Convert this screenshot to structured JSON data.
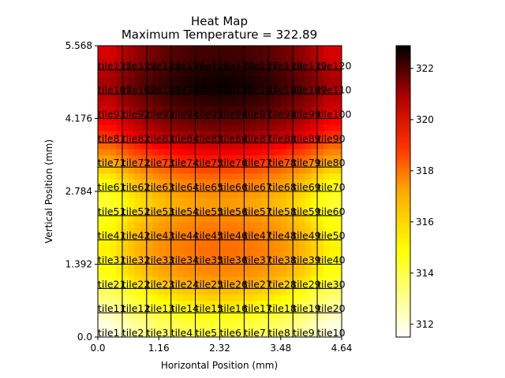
{
  "chart_data": {
    "type": "heatmap",
    "title": "Heat Map",
    "subtitle": "Maximum Temperature = 322.89",
    "xlabel": "Horizontal Position (mm)",
    "ylabel": "Vertical Position (mm)",
    "xlim": [
      0.0,
      4.64
    ],
    "ylim": [
      0.0,
      5.568
    ],
    "x_ticks": [
      "0.0",
      "1.16",
      "2.32",
      "3.48",
      "4.64"
    ],
    "y_ticks": [
      "0.0",
      "1.392",
      "2.784",
      "4.176",
      "5.568"
    ],
    "grid": {
      "cols": 10,
      "rows": 12
    },
    "colorbar": {
      "min": 311.5,
      "max": 322.89,
      "ticks": [
        "312",
        "314",
        "316",
        "318",
        "320",
        "322"
      ],
      "colormap": "hot_r"
    },
    "tile_labels_by_row": [
      [
        "tile1",
        "tile2",
        "tile3",
        "tile4",
        "tile5",
        "tile6",
        "tile7",
        "tile8",
        "tile9",
        "tile10"
      ],
      [
        "tile11",
        "tile12",
        "tile13",
        "tile14",
        "tile15",
        "tile16",
        "tile17",
        "tile18",
        "tile19",
        "tile20"
      ],
      [
        "tile21",
        "tile22",
        "tile23",
        "tile24",
        "tile25",
        "tile26",
        "tile27",
        "tile28",
        "tile29",
        "tile30"
      ],
      [
        "tile31",
        "tile32",
        "tile33",
        "tile34",
        "tile35",
        "tile36",
        "tile37",
        "tile38",
        "tile39",
        "tile40"
      ],
      [
        "tile41",
        "tile42",
        "tile43",
        "tile44",
        "tile45",
        "tile46",
        "tile47",
        "tile48",
        "tile49",
        "tile50"
      ],
      [
        "tile51",
        "tile52",
        "tile53",
        "tile54",
        "tile55",
        "tile56",
        "tile57",
        "tile58",
        "tile59",
        "tile60"
      ],
      [
        "tile61",
        "tile62",
        "tile63",
        "tile64",
        "tile65",
        "tile66",
        "tile67",
        "tile68",
        "tile69",
        "tile70"
      ],
      [
        "tile71",
        "tile72",
        "tile73",
        "tile74",
        "tile75",
        "tile76",
        "tile77",
        "tile78",
        "tile79",
        "tile80"
      ],
      [
        "tile81",
        "tile82",
        "tile83",
        "tile84",
        "tile85",
        "tile86",
        "tile87",
        "tile88",
        "tile89",
        "tile90"
      ],
      [
        "tile91",
        "tile92",
        "tile93",
        "tile94",
        "tile95",
        "tile96",
        "tile97",
        "tile98",
        "tile99",
        "tile100"
      ],
      [
        "tile101",
        "tile102",
        "tile103",
        "tile104",
        "tile105",
        "tile106",
        "tile107",
        "tile108",
        "tile109",
        "tile110"
      ],
      [
        "tile111",
        "tile112",
        "tile113",
        "tile114",
        "tile115",
        "tile116",
        "tile117",
        "tile118",
        "tile119",
        "tile120"
      ]
    ],
    "row_temperatures": [
      [
        311.8,
        312.6,
        313.2,
        313.6,
        313.8,
        313.8,
        313.6,
        313.2,
        312.6,
        311.8
      ],
      [
        312.9,
        313.7,
        314.4,
        314.8,
        315.0,
        315.0,
        314.8,
        314.4,
        313.7,
        312.9
      ],
      [
        314.1,
        315.1,
        315.7,
        316.1,
        316.3,
        316.3,
        316.1,
        315.7,
        315.1,
        314.1
      ],
      [
        314.6,
        315.6,
        316.3,
        316.7,
        316.9,
        316.9,
        316.7,
        316.3,
        315.6,
        314.6
      ],
      [
        314.4,
        315.4,
        316.1,
        316.5,
        316.7,
        316.7,
        316.5,
        316.1,
        315.4,
        314.4
      ],
      [
        313.8,
        314.7,
        315.4,
        315.8,
        316.0,
        316.0,
        315.8,
        315.4,
        314.7,
        313.8
      ],
      [
        314.5,
        315.5,
        316.2,
        316.6,
        316.8,
        316.8,
        316.6,
        316.2,
        315.5,
        314.5
      ],
      [
        316.2,
        317.3,
        318.0,
        318.5,
        318.7,
        318.7,
        318.5,
        318.0,
        317.3,
        316.2
      ],
      [
        318.3,
        319.4,
        320.2,
        320.6,
        320.9,
        320.9,
        320.6,
        320.2,
        319.4,
        318.3
      ],
      [
        319.6,
        320.7,
        321.4,
        321.9,
        322.1,
        322.1,
        321.9,
        321.4,
        320.7,
        319.6
      ],
      [
        320.3,
        321.4,
        322.1,
        322.6,
        322.9,
        322.9,
        322.6,
        322.1,
        321.4,
        320.3
      ],
      [
        319.4,
        320.5,
        321.3,
        321.8,
        322.0,
        322.0,
        321.8,
        321.3,
        320.5,
        319.4
      ]
    ]
  }
}
